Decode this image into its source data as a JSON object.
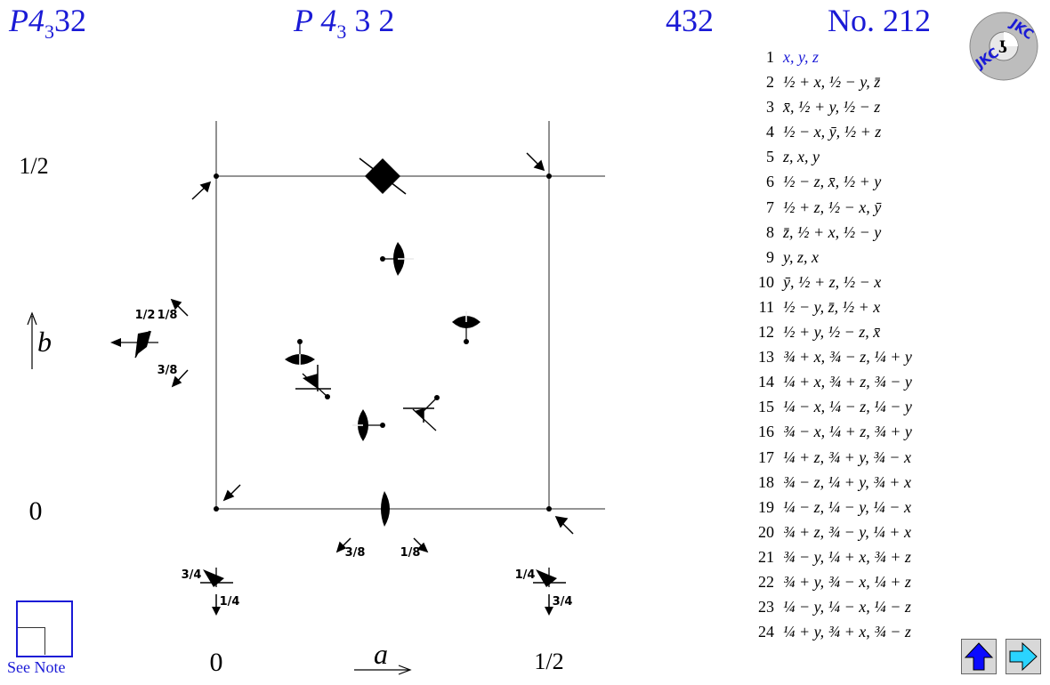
{
  "header": {
    "short_symbol": {
      "main": "P4",
      "sub": "3",
      "rest": "32"
    },
    "full_symbol": {
      "main": "P 4",
      "sub": "3",
      "rest": " 3 2"
    },
    "point_group": "432",
    "number": "No. 212"
  },
  "axes": {
    "b_label": "b",
    "a_label": "a",
    "y_half": "1/2",
    "y_zero": "0",
    "x_zero": "0",
    "x_half": "1/2"
  },
  "height_labels": {
    "left_half": "1/2",
    "left_one_eighth": "1/8",
    "left_three_eighths": "3/8",
    "bottom_three_eighths": "3/8",
    "bottom_one_eighth": "1/8",
    "bl_three_quarters": "3/4",
    "bl_one_quarter": "1/4",
    "br_one_quarter": "1/4",
    "br_three_quarters": "3/4"
  },
  "operations": [
    {
      "n": "1",
      "expr": "x, y, z"
    },
    {
      "n": "2",
      "expr": "½ + x, ½ − y, z̄"
    },
    {
      "n": "3",
      "expr": "x̄, ½ + y, ½ − z"
    },
    {
      "n": "4",
      "expr": "½ − x, ȳ, ½ + z"
    },
    {
      "n": "5",
      "expr": "z, x, y"
    },
    {
      "n": "6",
      "expr": "½ − z, x̄, ½ + y"
    },
    {
      "n": "7",
      "expr": "½ + z, ½ − x, ȳ"
    },
    {
      "n": "8",
      "expr": "z̄, ½ + x, ½ − y"
    },
    {
      "n": "9",
      "expr": "y, z, x"
    },
    {
      "n": "10",
      "expr": "ȳ, ½ + z, ½ − x"
    },
    {
      "n": "11",
      "expr": "½ − y, z̄, ½ + x"
    },
    {
      "n": "12",
      "expr": "½ + y, ½ − z, x̄"
    },
    {
      "n": "13",
      "expr": "¾ + x, ¾ − z, ¼ + y"
    },
    {
      "n": "14",
      "expr": "¼ + x, ¾ + z, ¾ − y"
    },
    {
      "n": "15",
      "expr": "¼ − x, ¼ − z, ¼ − y"
    },
    {
      "n": "16",
      "expr": "¾ − x, ¼ + z, ¾ + y"
    },
    {
      "n": "17",
      "expr": "¼ + z, ¾ + y, ¾ − x"
    },
    {
      "n": "18",
      "expr": "¾ − z, ¼ + y, ¾ + x"
    },
    {
      "n": "19",
      "expr": "¼ − z, ¼ − y, ¼ − x"
    },
    {
      "n": "20",
      "expr": "¾ + z, ¾ − y, ¼ + x"
    },
    {
      "n": "21",
      "expr": "¾ − y, ¼ + x, ¾ + z"
    },
    {
      "n": "22",
      "expr": "¾ + y, ¾ − x, ¼ + z"
    },
    {
      "n": "23",
      "expr": "¼ − y, ¼ − x, ¼ − z"
    },
    {
      "n": "24",
      "expr": "¼ + y, ¾ + x, ¾ − z"
    }
  ],
  "logo": {
    "text_top": "JKC",
    "text_bottom": "JKC"
  },
  "see_note": "See Note",
  "colors": {
    "blue": "#1a1ad6",
    "nav_up": "#0a0aff",
    "nav_next": "#2ad4ff"
  }
}
